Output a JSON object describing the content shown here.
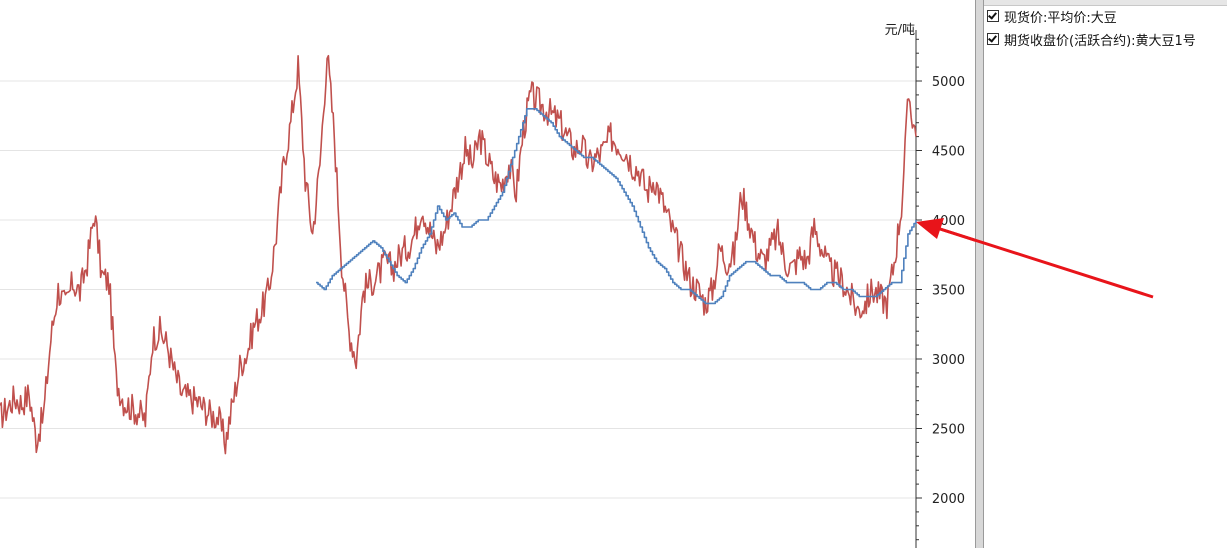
{
  "chart_data": {
    "type": "line",
    "ylabel": "元/吨",
    "ylim": [
      1700,
      5400
    ],
    "yticks": [
      2000,
      2500,
      3000,
      3500,
      4000,
      4500,
      5000
    ],
    "grid": true,
    "legend_placement": "right-panel",
    "series": [
      {
        "name": "期货收盘价(活跃合约):黄大豆1号",
        "color": "#c0504d",
        "start": 0.0,
        "values": [
          2580,
          2650,
          2720,
          2680,
          2750,
          2420,
          2600,
          3150,
          3500,
          3380,
          3550,
          3480,
          3700,
          4050,
          3600,
          3550,
          2850,
          2700,
          2650,
          2620,
          2560,
          3150,
          3200,
          3100,
          2900,
          2750,
          2720,
          2700,
          2650,
          2600,
          2580,
          2400,
          2680,
          2950,
          3050,
          3250,
          3350,
          3500,
          3900,
          4400,
          4700,
          5100,
          4300,
          3900,
          4400,
          5200,
          4600,
          3700,
          3200,
          3000,
          3500,
          3550,
          3600,
          3700,
          3650,
          3750,
          3800,
          3900,
          4100,
          3950,
          3800,
          3900,
          4100,
          4300,
          4500,
          4400,
          4600,
          4450,
          4300,
          4250,
          4400,
          4200,
          4650,
          4900,
          4850,
          4800,
          4750,
          4700,
          4600,
          4500,
          4550,
          4400,
          4450,
          4500,
          4600,
          4550,
          4500,
          4400,
          4350,
          4200,
          4300,
          4150,
          4000,
          3850,
          3700,
          3550,
          3500,
          3400,
          3500,
          3800,
          3700,
          3750,
          4200,
          4000,
          3800,
          3700,
          3800,
          3900,
          3700,
          3650,
          3750,
          3700,
          3950,
          3800,
          3650,
          3600,
          3550,
          3450,
          3350,
          3400,
          3500,
          3450,
          3400,
          3700,
          4100,
          4900,
          4600
        ]
      },
      {
        "name": "现货价:平均价:大豆",
        "color": "#4f81bd",
        "start": 0.345,
        "values": [
          3550,
          3500,
          3600,
          3650,
          3700,
          3750,
          3800,
          3850,
          3800,
          3700,
          3600,
          3550,
          3650,
          3800,
          3900,
          4100,
          4000,
          4050,
          3950,
          3950,
          4000,
          4000,
          4100,
          4200,
          4400,
          4600,
          4800,
          4800,
          4750,
          4700,
          4600,
          4550,
          4500,
          4450,
          4450,
          4400,
          4350,
          4300,
          4200,
          4100,
          3950,
          3800,
          3700,
          3650,
          3550,
          3500,
          3500,
          3450,
          3400,
          3400,
          3450,
          3600,
          3650,
          3700,
          3700,
          3650,
          3600,
          3600,
          3550,
          3550,
          3550,
          3500,
          3500,
          3550,
          3550,
          3500,
          3500,
          3450,
          3450,
          3450,
          3500,
          3550,
          3550,
          3900,
          4000
        ]
      }
    ]
  }
}
